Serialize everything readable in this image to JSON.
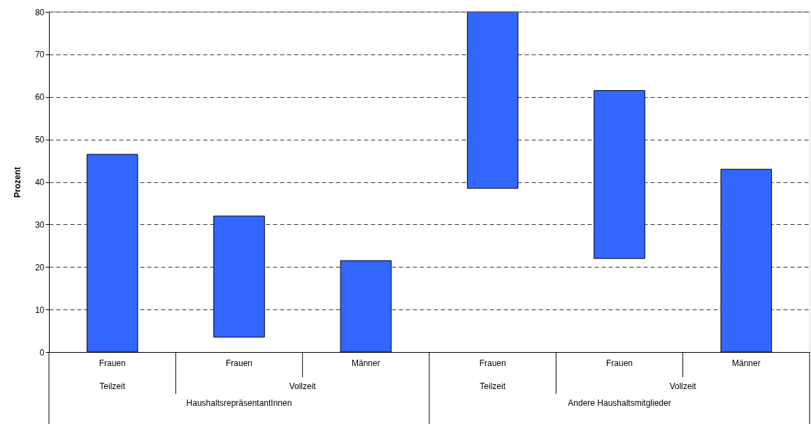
{
  "chart_data": {
    "type": "bar",
    "ylabel": "Prozent",
    "categories": [
      "Frauen",
      "Frauen",
      "Männer",
      "Frauen",
      "Frauen",
      "Männer"
    ],
    "base": [
      0,
      3.5,
      0,
      38.5,
      22,
      0
    ],
    "values": [
      46.5,
      28.5,
      21.5,
      41.5,
      39.5,
      43
    ],
    "color": "#3366ff",
    "ylim": [
      0,
      80
    ],
    "yticks": [
      0,
      10,
      20,
      30,
      40,
      50,
      60,
      70,
      80
    ],
    "grid": "y",
    "annotations": [
      "Teilzeit",
      "Vollzeit",
      "Teilzeit",
      "Vollzeit",
      "HaushaltsrepräsentantInnen",
      "Andere Haushaltsmitglieder"
    ]
  }
}
